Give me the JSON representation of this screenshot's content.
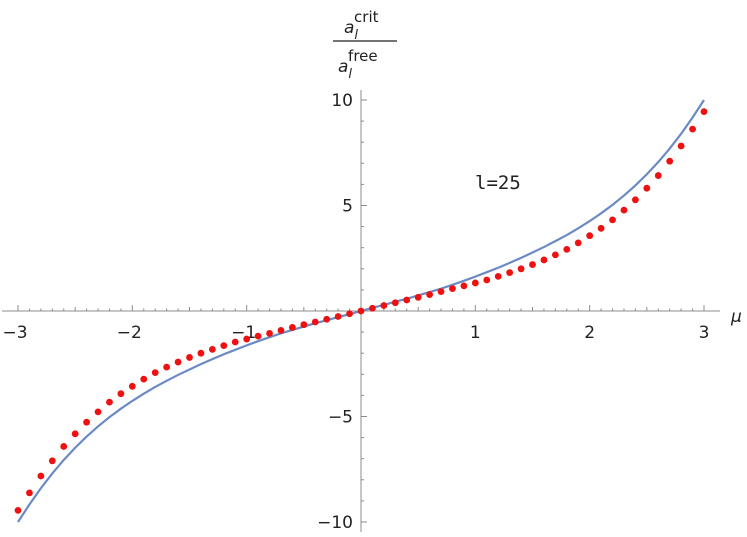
{
  "chart_data": {
    "type": "scatter",
    "xlabel": "μ",
    "ylabel": {
      "numerator_base": "a",
      "numerator_sub": "l",
      "numerator_sup": "crit",
      "denominator_base": "a",
      "denominator_sub": "l",
      "denominator_sup": "free"
    },
    "annotation": "l=25",
    "xlim": [
      -3.05,
      3.05
    ],
    "ylim": [
      -10.4,
      10.4
    ],
    "x_ticks": [
      {
        "value": -3,
        "label": "−3"
      },
      {
        "value": -2,
        "label": "−2"
      },
      {
        "value": -1,
        "label": "−1"
      },
      {
        "value": 1,
        "label": "1"
      },
      {
        "value": 2,
        "label": "2"
      },
      {
        "value": 3,
        "label": "3"
      }
    ],
    "y_ticks": [
      {
        "value": -10,
        "label": "−10"
      },
      {
        "value": -5,
        "label": "−5"
      },
      {
        "value": 5,
        "label": "5"
      },
      {
        "value": 10,
        "label": "10"
      }
    ],
    "grid": false,
    "series": [
      {
        "kind": "line",
        "color": "#6b8ac4",
        "x": [
          -3.0,
          -2.9,
          -2.8,
          -2.7,
          -2.6,
          -2.5,
          -2.4,
          -2.3,
          -2.2,
          -2.1,
          -2.0,
          -1.9,
          -1.8,
          -1.7,
          -1.6,
          -1.5,
          -1.4,
          -1.3,
          -1.2,
          -1.1,
          -1.0,
          -0.9,
          -0.8,
          -0.7,
          -0.6,
          -0.5,
          -0.4,
          -0.3,
          -0.2,
          -0.1,
          0.0,
          0.1,
          0.2,
          0.3,
          0.4,
          0.5,
          0.6,
          0.7,
          0.8,
          0.9,
          1.0,
          1.1,
          1.2,
          1.3,
          1.4,
          1.5,
          1.6,
          1.7,
          1.8,
          1.9,
          2.0,
          2.1,
          2.2,
          2.3,
          2.4,
          2.5,
          2.6,
          2.7,
          2.8,
          2.9,
          3.0
        ],
        "y": [
          -10.0,
          -9.17,
          -8.4,
          -7.7,
          -7.06,
          -6.48,
          -5.95,
          -5.47,
          -5.03,
          -4.63,
          -4.26,
          -3.92,
          -3.6,
          -3.31,
          -3.03,
          -2.77,
          -2.52,
          -2.28,
          -2.05,
          -1.84,
          -1.63,
          -1.43,
          -1.24,
          -1.06,
          -0.9,
          -0.74,
          -0.58,
          -0.44,
          -0.29,
          -0.15,
          0.0,
          0.15,
          0.29,
          0.44,
          0.58,
          0.74,
          0.9,
          1.06,
          1.24,
          1.43,
          1.63,
          1.84,
          2.05,
          2.28,
          2.52,
          2.77,
          3.03,
          3.31,
          3.6,
          3.92,
          4.26,
          4.63,
          5.03,
          5.47,
          5.95,
          6.48,
          7.06,
          7.7,
          8.4,
          9.17,
          10.0
        ]
      },
      {
        "kind": "points",
        "color": "#ee1111",
        "x": [
          -3.0,
          -2.9,
          -2.8,
          -2.7,
          -2.6,
          -2.5,
          -2.4,
          -2.3,
          -2.2,
          -2.1,
          -2.0,
          -1.9,
          -1.8,
          -1.7,
          -1.6,
          -1.5,
          -1.4,
          -1.3,
          -1.2,
          -1.1,
          -1.0,
          -0.9,
          -0.8,
          -0.7,
          -0.6,
          -0.5,
          -0.4,
          -0.3,
          -0.2,
          -0.1,
          0.0,
          0.1,
          0.2,
          0.3,
          0.4,
          0.5,
          0.6,
          0.7,
          0.8,
          0.9,
          1.0,
          1.1,
          1.2,
          1.3,
          1.4,
          1.5,
          1.6,
          1.7,
          1.8,
          1.9,
          2.0,
          2.1,
          2.2,
          2.3,
          2.4,
          2.5,
          2.6,
          2.7,
          2.8,
          2.9,
          3.0
        ],
        "y": [
          -9.45,
          -8.62,
          -7.82,
          -7.1,
          -6.42,
          -5.82,
          -5.27,
          -4.78,
          -4.32,
          -3.92,
          -3.57,
          -3.23,
          -2.92,
          -2.66,
          -2.42,
          -2.2,
          -2.0,
          -1.82,
          -1.64,
          -1.47,
          -1.33,
          -1.19,
          -1.06,
          -0.92,
          -0.78,
          -0.65,
          -0.52,
          -0.39,
          -0.26,
          -0.13,
          0.0,
          0.13,
          0.26,
          0.39,
          0.52,
          0.65,
          0.78,
          0.92,
          1.06,
          1.19,
          1.33,
          1.47,
          1.64,
          1.82,
          2.0,
          2.2,
          2.42,
          2.66,
          2.92,
          3.23,
          3.57,
          3.92,
          4.32,
          4.78,
          5.27,
          5.82,
          6.42,
          7.1,
          7.82,
          8.62,
          9.45
        ]
      }
    ]
  }
}
